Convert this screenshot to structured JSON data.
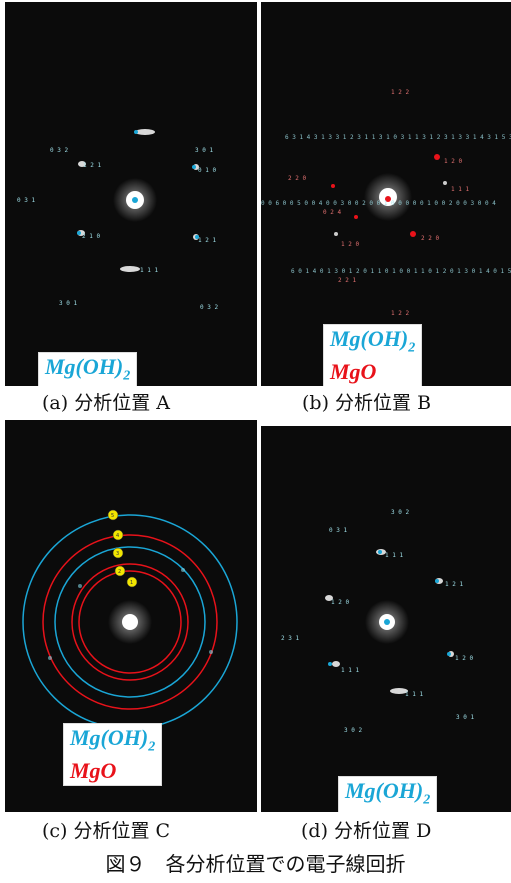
{
  "panels": [
    {
      "caption": "(a) 分析位置 A",
      "legend": [
        "Mg(OH)",
        "2"
      ],
      "legend2": ""
    },
    {
      "caption": "(b) 分析位置 B",
      "legend": [
        "Mg(OH)",
        "2"
      ],
      "legend2": "MgO"
    },
    {
      "caption": "(c) 分析位置 C",
      "legend": [
        "Mg(OH)",
        "2"
      ],
      "legend2": "MgO"
    },
    {
      "caption": "(d) 分析位置 D",
      "legend": [
        "Mg(OH)",
        "2"
      ],
      "legend2": ""
    }
  ],
  "figure_caption": "図９　各分析位置での電子線回折",
  "colors": {
    "mgoh2": "#1aa6d6",
    "mgo": "#e8121a",
    "ring_label": "#f2e600"
  }
}
